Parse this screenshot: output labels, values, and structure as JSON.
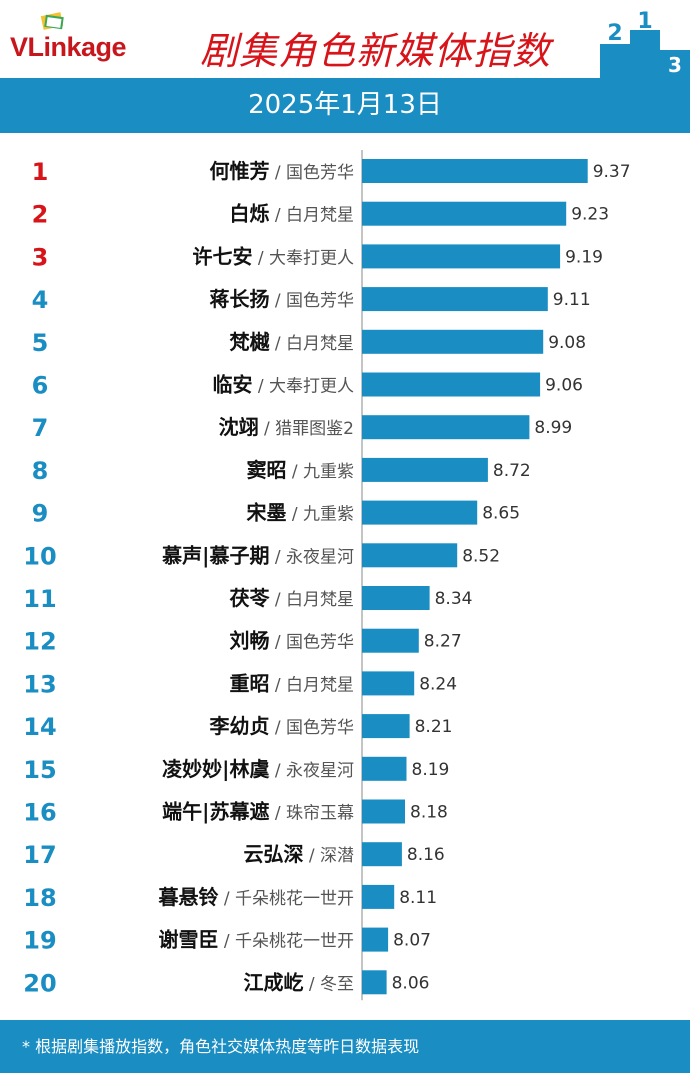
{
  "header": {
    "logo_text": "VLinkage",
    "title": "剧集角色新媒体指数",
    "date": "2025年1月13日"
  },
  "footer": {
    "note": "* 根据剧集播放指数，角色社交媒体热度等昨日数据表现"
  },
  "colors": {
    "bar": "#1a8dc2",
    "rank_top": "#d7141a",
    "rank_other": "#1a8dc2",
    "axis": "#8a8a8a"
  },
  "chart_data": {
    "type": "bar",
    "orientation": "horizontal",
    "title": "剧集角色新媒体指数",
    "xlabel": "",
    "ylabel": "",
    "xlim": [
      7.9,
      9.45
    ],
    "rows": [
      {
        "rank": "1",
        "name": "何惟芳",
        "show": " / 国色芳华",
        "value": 9.37
      },
      {
        "rank": "2",
        "name": "白烁",
        "show": " / 白月梵星",
        "value": 9.23
      },
      {
        "rank": "3",
        "name": "许七安",
        "show": " / 大奉打更人",
        "value": 9.19
      },
      {
        "rank": "4",
        "name": "蒋长扬",
        "show": " / 国色芳华",
        "value": 9.11
      },
      {
        "rank": "5",
        "name": "梵樾",
        "show": " / 白月梵星",
        "value": 9.08
      },
      {
        "rank": "6",
        "name": "临安",
        "show": " / 大奉打更人",
        "value": 9.06
      },
      {
        "rank": "7",
        "name": "沈翊",
        "show": " / 猎罪图鉴2",
        "value": 8.99
      },
      {
        "rank": "8",
        "name": "窦昭",
        "show": " / 九重紫",
        "value": 8.72
      },
      {
        "rank": "9",
        "name": "宋墨",
        "show": " / 九重紫",
        "value": 8.65
      },
      {
        "rank": "10",
        "name": "慕声|慕子期",
        "show": " / 永夜星河",
        "value": 8.52
      },
      {
        "rank": "11",
        "name": "茯苓",
        "show": " / 白月梵星",
        "value": 8.34
      },
      {
        "rank": "12",
        "name": "刘畅",
        "show": " / 国色芳华",
        "value": 8.27
      },
      {
        "rank": "13",
        "name": "重昭",
        "show": " / 白月梵星",
        "value": 8.24
      },
      {
        "rank": "14",
        "name": "李幼贞",
        "show": " / 国色芳华",
        "value": 8.21
      },
      {
        "rank": "15",
        "name": "凌妙妙|林虞",
        "show": " / 永夜星河",
        "value": 8.19
      },
      {
        "rank": "16",
        "name": "端午|苏幕遮",
        "show": " / 珠帘玉幕",
        "value": 8.18
      },
      {
        "rank": "17",
        "name": "云弘深",
        "show": " / 深潜",
        "value": 8.16
      },
      {
        "rank": "18",
        "name": "暮悬铃",
        "show": " / 千朵桃花一世开",
        "value": 8.11
      },
      {
        "rank": "19",
        "name": "谢雪臣",
        "show": " / 千朵桃花一世开",
        "value": 8.07
      },
      {
        "rank": "20",
        "name": "江成屹",
        "show": " / 冬至",
        "value": 8.06
      }
    ]
  }
}
